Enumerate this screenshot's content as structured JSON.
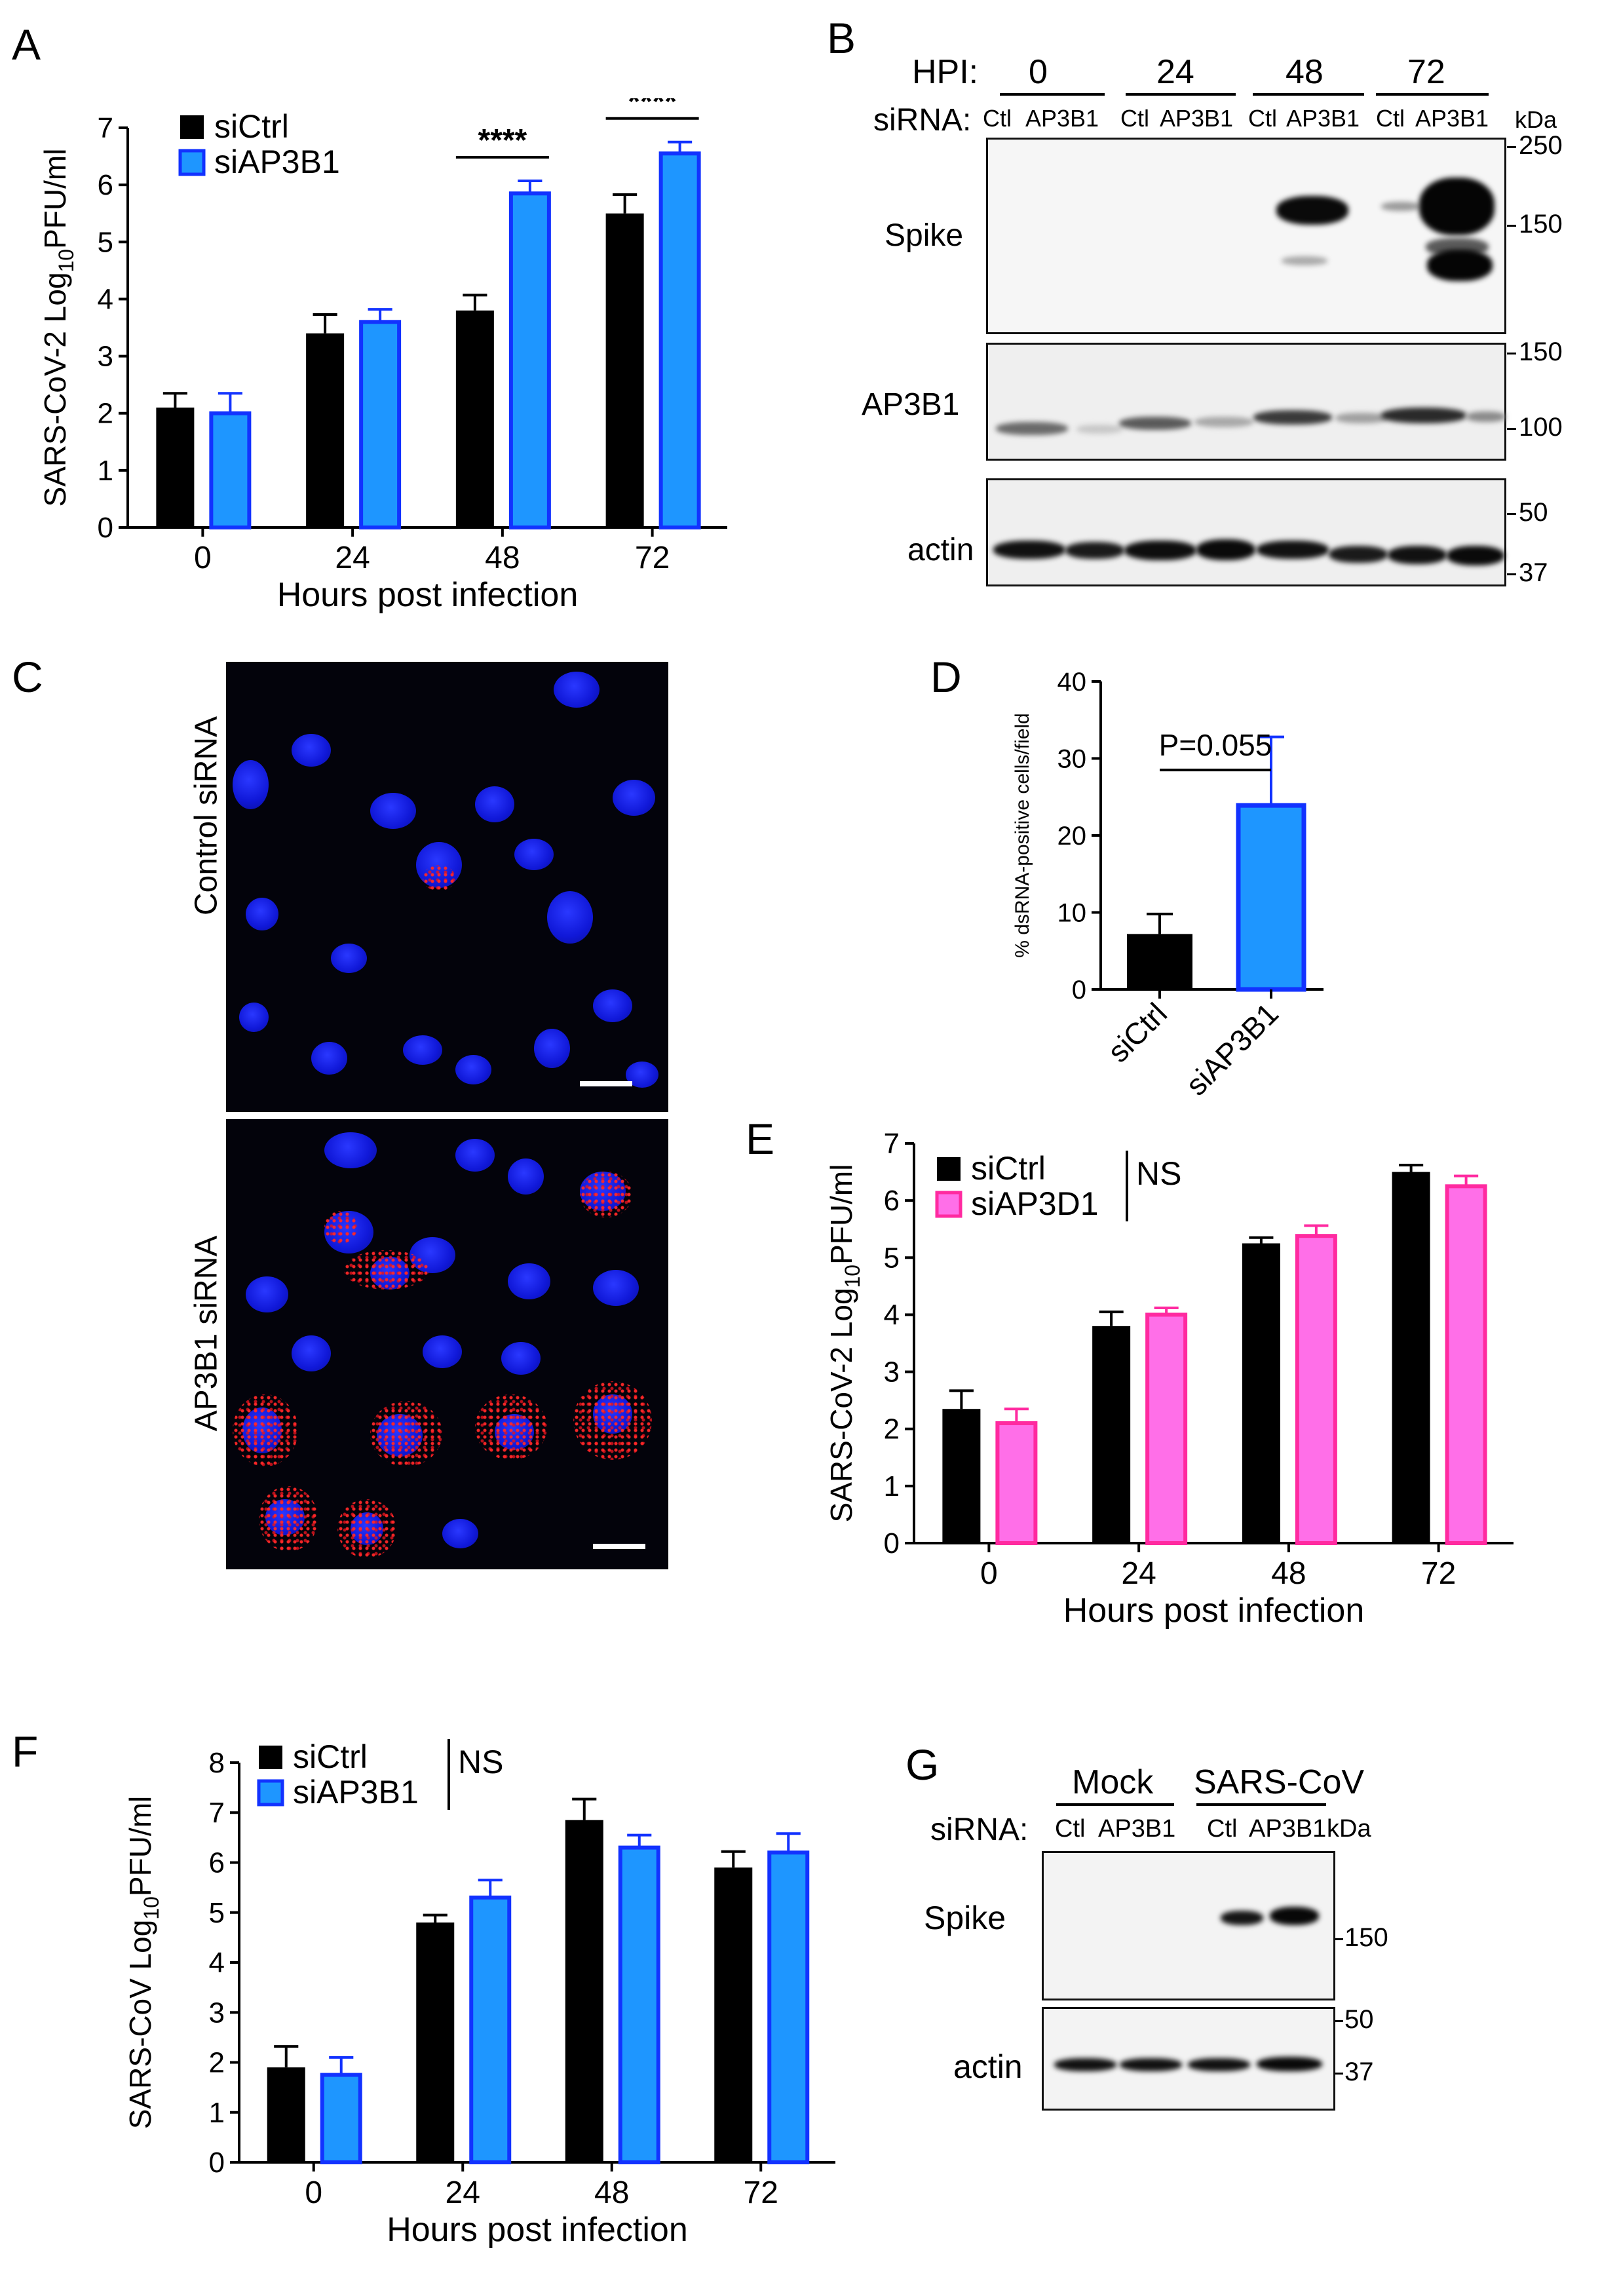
{
  "panel_letters": {
    "A": "A",
    "B": "B",
    "C": "C",
    "D": "D",
    "E": "E",
    "F": "F",
    "G": "G"
  },
  "chart_data": [
    {
      "panel": "A",
      "type": "bar",
      "categories": [
        "0",
        "24",
        "48",
        "72"
      ],
      "series": [
        {
          "name": "siCtrl",
          "values": [
            2.1,
            3.4,
            3.8,
            5.5
          ],
          "errors": [
            0.25,
            0.33,
            0.27,
            0.33
          ],
          "color": "#000000"
        },
        {
          "name": "siAP3B1",
          "values": [
            2.0,
            3.6,
            5.85,
            6.55
          ],
          "errors": [
            0.35,
            0.22,
            0.22,
            0.2
          ],
          "color": "#1e96ff"
        }
      ],
      "ylabel_main": "SARS-CoV-2 Log",
      "ylabel_sub": "10",
      "ylabel_tail": "PFU/ml",
      "xlabel": "Hours post infection",
      "yticks": [
        "0",
        "1",
        "2",
        "3",
        "4",
        "5",
        "6",
        "7"
      ],
      "ylim": [
        0,
        7
      ],
      "significance": [
        {
          "category": "48",
          "label": "****"
        },
        {
          "category": "72",
          "label": "****"
        }
      ]
    },
    {
      "panel": "D",
      "type": "bar",
      "categories": [
        "siCtrl",
        "siAP3B1"
      ],
      "series": [
        {
          "name": "% dsRNA-positive cells/field",
          "values": [
            7.2,
            23.9
          ],
          "errors": [
            2.6,
            8.9
          ],
          "colors": [
            "#000000",
            "#1e96ff"
          ]
        }
      ],
      "ylabel": "% dsRNA-positive cells/field",
      "yticks": [
        "0",
        "10",
        "20",
        "30",
        "40"
      ],
      "ylim": [
        0,
        40
      ],
      "pvalue": "P=0.055"
    },
    {
      "panel": "E",
      "type": "bar",
      "categories": [
        "0",
        "24",
        "48",
        "72"
      ],
      "series": [
        {
          "name": "siCtrl",
          "values": [
            2.35,
            3.8,
            5.25,
            6.5
          ],
          "errors": [
            0.32,
            0.25,
            0.1,
            0.12
          ],
          "color": "#000000"
        },
        {
          "name": "siAP3D1",
          "values": [
            2.1,
            4.0,
            5.38,
            6.25
          ],
          "errors": [
            0.25,
            0.12,
            0.18,
            0.18
          ],
          "color": "#ff6fe8"
        }
      ],
      "ylabel_main": "SARS-CoV-2 Log",
      "ylabel_sub": "10",
      "ylabel_tail": "PFU/ml",
      "xlabel": "Hours post infection",
      "yticks": [
        "0",
        "1",
        "2",
        "3",
        "4",
        "5",
        "6",
        "7"
      ],
      "ylim": [
        0,
        7
      ],
      "annotation": "NS"
    },
    {
      "panel": "F",
      "type": "bar",
      "categories": [
        "0",
        "24",
        "48",
        "72"
      ],
      "series": [
        {
          "name": "siCtrl",
          "values": [
            1.9,
            4.8,
            6.85,
            5.9
          ],
          "errors": [
            0.42,
            0.15,
            0.42,
            0.32
          ],
          "color": "#000000"
        },
        {
          "name": "siAP3B1",
          "values": [
            1.75,
            5.3,
            6.3,
            6.2
          ],
          "errors": [
            0.35,
            0.35,
            0.25,
            0.38
          ],
          "color": "#1e96ff"
        }
      ],
      "ylabel_main": "SARS-CoV Log",
      "ylabel_sub": "10",
      "ylabel_tail": "PFU/ml",
      "xlabel": "Hours post infection",
      "yticks": [
        "0",
        "1",
        "2",
        "3",
        "4",
        "5",
        "6",
        "7",
        "8"
      ],
      "ylim": [
        0,
        8
      ],
      "annotation": "NS"
    }
  ],
  "blotB": {
    "hpi_label": "HPI:",
    "hpi_groups": [
      "0",
      "24",
      "48",
      "72"
    ],
    "sirna_label": "siRNA:",
    "lane_labels": [
      "Ctl",
      "AP3B1",
      "Ctl",
      "AP3B1",
      "Ctl",
      "AP3B1",
      "Ctl",
      "AP3B1"
    ],
    "kda": "kDa",
    "rows": [
      {
        "name": "Spike",
        "markers": [
          "250",
          "150"
        ]
      },
      {
        "name": "AP3B1",
        "markers": [
          "150",
          "100"
        ]
      },
      {
        "name": "actin",
        "markers": [
          "50",
          "37"
        ]
      }
    ]
  },
  "micro": {
    "top_label": "Control siRNA",
    "bottom_label": "AP3B1 siRNA"
  },
  "blotG": {
    "groups": [
      "Mock",
      "SARS-CoV"
    ],
    "sirna_label": "siRNA:",
    "lane_labels": [
      "Ctl",
      "AP3B1",
      "Ctl",
      "AP3B1"
    ],
    "kda": "kDa",
    "rows": [
      {
        "name": "Spike",
        "markers": [
          "150"
        ]
      },
      {
        "name": "actin",
        "markers": [
          "50",
          "37"
        ]
      }
    ]
  },
  "colors": {
    "black": "#000000",
    "blue": "#1e96ff",
    "blue_edge": "#1232ff",
    "pink": "#ff6fe8",
    "pink_edge": "#ff2aa0"
  }
}
